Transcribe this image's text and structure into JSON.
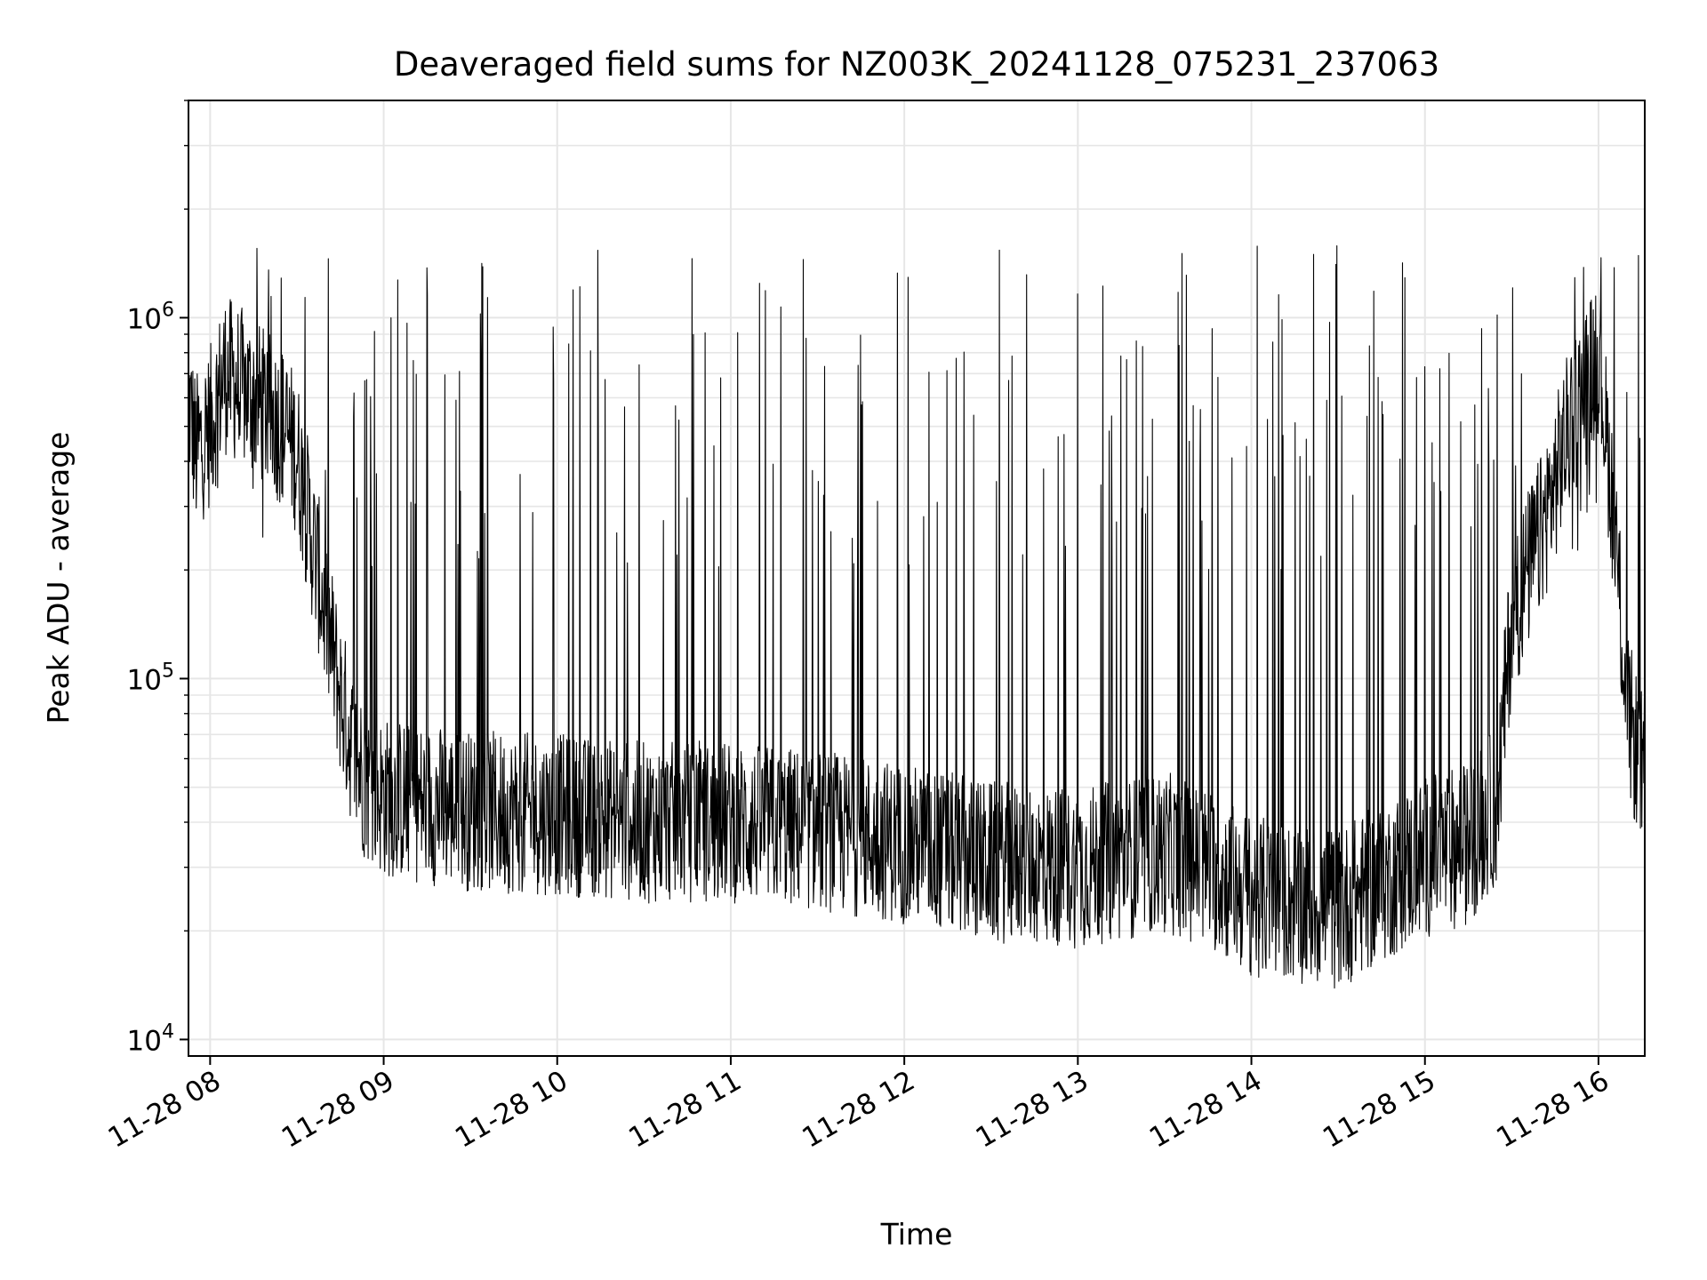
{
  "chart_data": {
    "type": "line",
    "title": "Deaveraged field sums for NZ003K_20241128_075231_237063",
    "xlabel": "Time",
    "ylabel": "Peak ADU - average",
    "y_scale": "log",
    "ylim": [
      9000,
      4000000
    ],
    "xlim": [
      "2024-11-28 07:52:31",
      "2024-11-28 16:16:00"
    ],
    "x_tick_labels": [
      "11-28 08",
      "11-28 09",
      "11-28 10",
      "11-28 11",
      "11-28 12",
      "11-28 13",
      "11-28 14",
      "11-28 15",
      "11-28 16"
    ],
    "x_ticks": [
      "2024-11-28 08:00",
      "2024-11-28 09:00",
      "2024-11-28 10:00",
      "2024-11-28 11:00",
      "2024-11-28 12:00",
      "2024-11-28 13:00",
      "2024-11-28 14:00",
      "2024-11-28 15:00",
      "2024-11-28 16:00"
    ],
    "y_ticks": [
      {
        "value": 10000,
        "base": "10",
        "exp": "4"
      },
      {
        "value": 100000,
        "base": "10",
        "exp": "5"
      },
      {
        "value": 1000000,
        "base": "10",
        "exp": "6"
      }
    ],
    "grid": true,
    "grid_color": "#e6e6e6",
    "line_color": "#000000",
    "series": [
      {
        "x": [
          "2024-11-28 07:52",
          "2024-11-28 07:55",
          "2024-11-28 08:00",
          "2024-11-28 08:05",
          "2024-11-28 08:10",
          "2024-11-28 08:15",
          "2024-11-28 08:20",
          "2024-11-28 08:25",
          "2024-11-28 08:30",
          "2024-11-28 08:35",
          "2024-11-28 08:40",
          "2024-11-28 08:45",
          "2024-11-28 08:50",
          "2024-11-28 08:55",
          "2024-11-28 09:00",
          "2024-11-28 09:30",
          "2024-11-28 10:00",
          "2024-11-28 10:30",
          "2024-11-28 11:00",
          "2024-11-28 11:30",
          "2024-11-28 12:00",
          "2024-11-28 12:30",
          "2024-11-28 13:00",
          "2024-11-28 13:30",
          "2024-11-28 13:45",
          "2024-11-28 14:00",
          "2024-11-28 14:15",
          "2024-11-28 14:30",
          "2024-11-28 15:00",
          "2024-11-28 15:15",
          "2024-11-28 15:25",
          "2024-11-28 15:30",
          "2024-11-28 15:40",
          "2024-11-28 15:50",
          "2024-11-28 16:00",
          "2024-11-28 16:05",
          "2024-11-28 16:10",
          "2024-11-28 16:15"
        ],
        "y": [
          650000,
          420000,
          500000,
          700000,
          650000,
          600000,
          550000,
          500000,
          420000,
          250000,
          150000,
          90000,
          60000,
          50000,
          47000,
          43000,
          42000,
          40000,
          40000,
          38000,
          35000,
          31000,
          30000,
          33000,
          30000,
          25000,
          24000,
          23000,
          32000,
          35000,
          45000,
          150000,
          250000,
          500000,
          800000,
          300000,
          80000,
          55000
        ]
      }
    ]
  }
}
